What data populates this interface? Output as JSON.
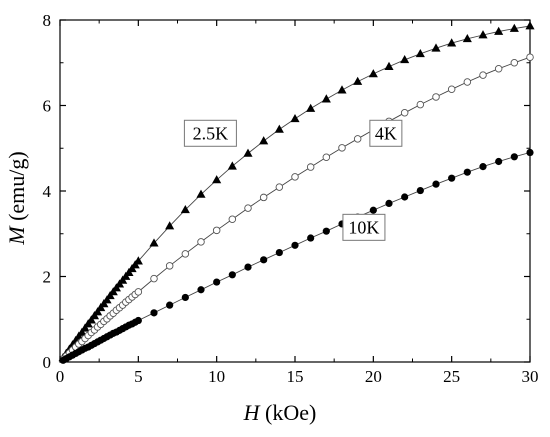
{
  "chart_data": {
    "type": "scatter",
    "title": "",
    "xlabel": {
      "symbol": "H",
      "unit": "(kOe)"
    },
    "ylabel": {
      "symbol": "M",
      "unit": "(emu/g)"
    },
    "xlim": [
      0,
      30
    ],
    "ylim": [
      0,
      8
    ],
    "xticks": [
      0,
      5,
      10,
      15,
      20,
      25,
      30
    ],
    "yticks": [
      0,
      2,
      4,
      6,
      8
    ],
    "grid": false,
    "legend": "none",
    "series": [
      {
        "name": "2.5K",
        "marker": "filled-triangle",
        "color": "#000000",
        "x": [
          0.2,
          0.4,
          0.6,
          0.8,
          1.0,
          1.2,
          1.4,
          1.6,
          1.8,
          2.0,
          2.2,
          2.4,
          2.6,
          2.8,
          3.0,
          3.2,
          3.4,
          3.6,
          3.8,
          4.0,
          4.2,
          4.4,
          4.6,
          4.8,
          5.0,
          6.0,
          7.0,
          8.0,
          9.0,
          10.0,
          11.0,
          12.0,
          13.0,
          14.0,
          15.0,
          16.0,
          17.0,
          18.0,
          19.0,
          20.0,
          21.0,
          22.0,
          23.0,
          24.0,
          25.0,
          26.0,
          27.0,
          28.0,
          29.0,
          30.0
        ],
        "y": [
          0.1,
          0.2,
          0.3,
          0.4,
          0.5,
          0.6,
          0.69,
          0.79,
          0.89,
          0.98,
          1.08,
          1.17,
          1.27,
          1.36,
          1.45,
          1.55,
          1.64,
          1.73,
          1.82,
          1.91,
          2.0,
          2.09,
          2.18,
          2.27,
          2.36,
          2.78,
          3.18,
          3.56,
          3.92,
          4.26,
          4.58,
          4.88,
          5.17,
          5.44,
          5.69,
          5.93,
          6.15,
          6.36,
          6.56,
          6.74,
          6.91,
          7.07,
          7.21,
          7.34,
          7.46,
          7.56,
          7.65,
          7.73,
          7.8,
          7.86
        ]
      },
      {
        "name": "4K",
        "marker": "open-circle",
        "color": "#555555",
        "x": [
          0.2,
          0.4,
          0.6,
          0.8,
          1.0,
          1.2,
          1.4,
          1.6,
          1.8,
          2.0,
          2.2,
          2.4,
          2.6,
          2.8,
          3.0,
          3.2,
          3.4,
          3.6,
          3.8,
          4.0,
          4.2,
          4.4,
          4.6,
          4.8,
          5.0,
          6.0,
          7.0,
          8.0,
          9.0,
          10.0,
          11.0,
          12.0,
          13.0,
          14.0,
          15.0,
          16.0,
          17.0,
          18.0,
          19.0,
          20.0,
          21.0,
          22.0,
          23.0,
          24.0,
          25.0,
          26.0,
          27.0,
          28.0,
          29.0,
          30.0
        ],
        "y": [
          0.07,
          0.14,
          0.21,
          0.28,
          0.35,
          0.42,
          0.48,
          0.55,
          0.62,
          0.69,
          0.75,
          0.82,
          0.88,
          0.95,
          1.01,
          1.08,
          1.14,
          1.21,
          1.27,
          1.33,
          1.4,
          1.46,
          1.52,
          1.58,
          1.64,
          1.95,
          2.25,
          2.53,
          2.81,
          3.08,
          3.34,
          3.6,
          3.85,
          4.09,
          4.33,
          4.56,
          4.79,
          5.01,
          5.22,
          5.43,
          5.63,
          5.83,
          6.02,
          6.2,
          6.38,
          6.55,
          6.71,
          6.86,
          7.0,
          7.13
        ]
      },
      {
        "name": "10K",
        "marker": "filled-circle",
        "color": "#000000",
        "x": [
          0.2,
          0.4,
          0.6,
          0.8,
          1.0,
          1.2,
          1.4,
          1.6,
          1.8,
          2.0,
          2.2,
          2.4,
          2.6,
          2.8,
          3.0,
          3.2,
          3.4,
          3.6,
          3.8,
          4.0,
          4.2,
          4.4,
          4.6,
          4.8,
          5.0,
          6.0,
          7.0,
          8.0,
          9.0,
          10.0,
          11.0,
          12.0,
          13.0,
          14.0,
          15.0,
          16.0,
          17.0,
          18.0,
          19.0,
          20.0,
          21.0,
          22.0,
          23.0,
          24.0,
          25.0,
          26.0,
          27.0,
          28.0,
          29.0,
          30.0
        ],
        "y": [
          0.04,
          0.08,
          0.12,
          0.16,
          0.2,
          0.24,
          0.28,
          0.32,
          0.35,
          0.39,
          0.43,
          0.47,
          0.51,
          0.55,
          0.59,
          0.63,
          0.67,
          0.7,
          0.74,
          0.78,
          0.82,
          0.86,
          0.89,
          0.93,
          0.97,
          1.15,
          1.33,
          1.51,
          1.69,
          1.87,
          2.04,
          2.22,
          2.39,
          2.56,
          2.73,
          2.9,
          3.06,
          3.23,
          3.39,
          3.55,
          3.71,
          3.86,
          4.01,
          4.16,
          4.3,
          4.44,
          4.57,
          4.69,
          4.8,
          4.9
        ]
      }
    ],
    "annotations": [
      {
        "text": "2.5K",
        "x": 9.6,
        "y": 5.35,
        "boxed": true
      },
      {
        "text": "4K",
        "x": 20.8,
        "y": 5.35,
        "boxed": true
      },
      {
        "text": "10K",
        "x": 19.4,
        "y": 3.15,
        "boxed": true
      }
    ]
  }
}
